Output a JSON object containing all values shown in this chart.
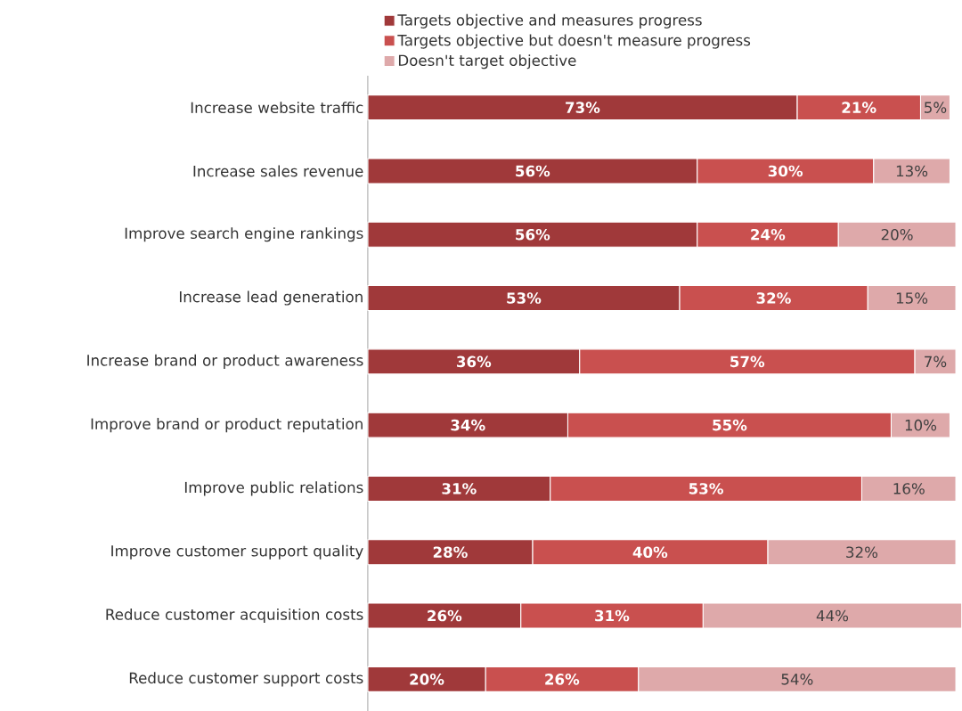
{
  "chart_data": {
    "type": "bar",
    "orientation": "horizontal",
    "stacked": true,
    "legend": "top",
    "categories": [
      "Increase website traffic",
      "Increase sales revenue",
      "Improve search engine rankings",
      "Increase lead generation",
      "Increase brand or product awareness",
      "Improve brand or product reputation",
      "Improve public relations",
      "Improve customer support quality",
      "Reduce customer acquisition costs",
      "Reduce customer support costs"
    ],
    "series": [
      {
        "name": "Targets objective and measures progress",
        "color": "#a0393a",
        "values": [
          73,
          56,
          56,
          53,
          36,
          34,
          31,
          28,
          26,
          20
        ],
        "value_labels": [
          "73%",
          "56%",
          "56%",
          "53%",
          "36%",
          "34%",
          "31%",
          "28%",
          "26%",
          "20%"
        ]
      },
      {
        "name": "Targets objective but doesn't measure progress",
        "color": "#c9504f",
        "values": [
          21,
          30,
          24,
          32,
          57,
          55,
          53,
          40,
          31,
          26
        ],
        "value_labels": [
          "21%",
          "30%",
          "24%",
          "32%",
          "57%",
          "55%",
          "53%",
          "40%",
          "31%",
          "26%"
        ]
      },
      {
        "name": "Doesn't target objective",
        "color": "#dea9aa",
        "values": [
          5,
          13,
          20,
          15,
          7,
          10,
          16,
          32,
          44,
          54
        ],
        "value_labels": [
          "5%",
          "13%",
          "20%",
          "15%",
          "7%",
          "10%",
          "16%",
          "32%",
          "44%",
          "54%"
        ]
      }
    ]
  }
}
